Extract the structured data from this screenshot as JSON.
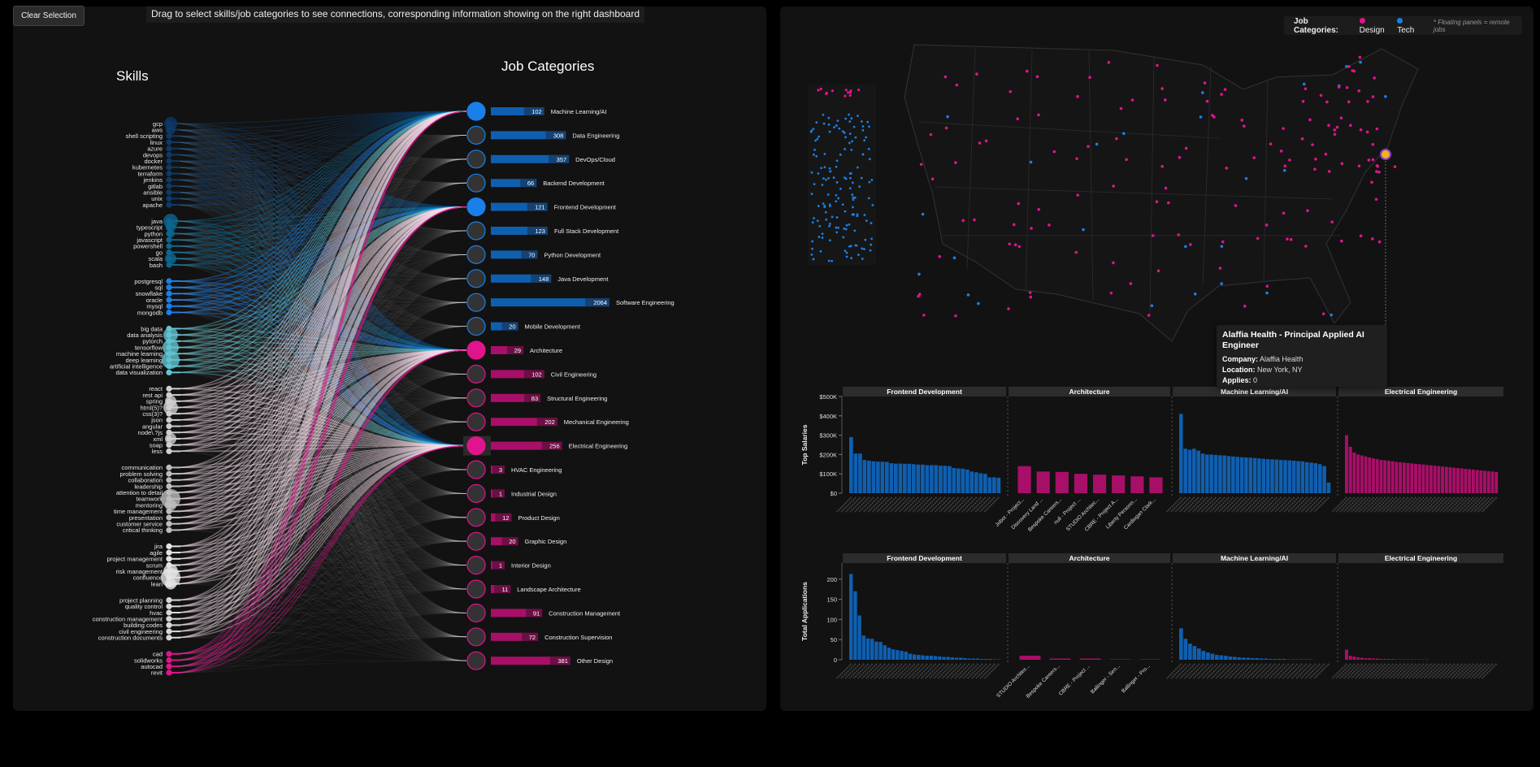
{
  "controls": {
    "clear_label": "Clear Selection",
    "hint": "Drag to select skills/job categories to see connections, corresponding information showing on the right dashboard"
  },
  "colors": {
    "tech": "#0f5fb0",
    "design": "#a80f68",
    "tech_node": "#1a7fe8",
    "design_node": "#e0148c",
    "highlight": "#f2b21c"
  },
  "sankey": {
    "skills_title": "Skills",
    "jobs_title": "Job Categories",
    "skill_groups": [
      {
        "color": "#0d3a66",
        "skills": [
          "gcp",
          "aws",
          "shell scripting",
          "linux",
          "azure",
          "devops",
          "docker",
          "kubernetes",
          "terraform",
          "jenkins",
          "gitlab",
          "ansible",
          "unix",
          "apache"
        ]
      },
      {
        "color": "#0e6790",
        "skills": [
          "java",
          "typescript",
          "python",
          "javascript",
          "powershell",
          "go",
          "scala",
          "bash"
        ]
      },
      {
        "color": "#1a7fe8",
        "skills": [
          "postgresql",
          "sql",
          "snowflake",
          "oracle",
          "mysql",
          "mongodb"
        ]
      },
      {
        "color": "#62c3cf",
        "skills": [
          "big data",
          "data analysis",
          "pytorch",
          "tensorflow",
          "machine learning",
          "deep learning",
          "artificial intelligence",
          "data visualization"
        ]
      },
      {
        "color": "#cfcfcf",
        "skills": [
          "react",
          "rest api",
          "spring",
          "html(5)?",
          "css(3)?",
          "json",
          "angular",
          "node\\.?js",
          "xml",
          "soap",
          "less"
        ]
      },
      {
        "color": "#bdbdbd",
        "skills": [
          "communication",
          "problem solving",
          "collaboration",
          "leadership",
          "attention to detail",
          "teamwork",
          "mentoring",
          "time management",
          "presentation",
          "customer service",
          "critical thinking"
        ]
      },
      {
        "color": "#e4e4e4",
        "skills": [
          "jira",
          "agile",
          "project management",
          "scrum",
          "risk management",
          "confluence",
          "lean"
        ]
      },
      {
        "color": "#d8d8d8",
        "skills": [
          "project planning",
          "quality control",
          "hvac",
          "construction management",
          "building codes",
          "civil engineering",
          "construction documents"
        ]
      },
      {
        "color": "#e0148c",
        "skills": [
          "cad",
          "solidworks",
          "autocad",
          "revit"
        ]
      }
    ],
    "jobs": [
      {
        "name": "Machine Learning/AI",
        "count": 102,
        "type": "tech",
        "selected": true
      },
      {
        "name": "Data Engineering",
        "count": 308,
        "type": "tech",
        "selected": false
      },
      {
        "name": "DevOps/Cloud",
        "count": 357,
        "type": "tech",
        "selected": false
      },
      {
        "name": "Backend Development",
        "count": 66,
        "type": "tech",
        "selected": false
      },
      {
        "name": "Frontend Development",
        "count": 121,
        "type": "tech",
        "selected": true
      },
      {
        "name": "Full Stack Development",
        "count": 123,
        "type": "tech",
        "selected": false
      },
      {
        "name": "Python Development",
        "count": 70,
        "type": "tech",
        "selected": false
      },
      {
        "name": "Java Development",
        "count": 148,
        "type": "tech",
        "selected": false
      },
      {
        "name": "Software Engineering",
        "count": 2064,
        "type": "tech",
        "selected": false
      },
      {
        "name": "Mobile Development",
        "count": 20,
        "type": "tech",
        "selected": false
      },
      {
        "name": "Architecture",
        "count": 29,
        "type": "design",
        "selected": true
      },
      {
        "name": "Civil Engineering",
        "count": 102,
        "type": "design",
        "selected": false
      },
      {
        "name": "Structural Engineering",
        "count": 83,
        "type": "design",
        "selected": false
      },
      {
        "name": "Mechanical Engineering",
        "count": 202,
        "type": "design",
        "selected": false
      },
      {
        "name": "Electrical Engineering",
        "count": 256,
        "type": "design",
        "selected": true
      },
      {
        "name": "HVAC Engineering",
        "count": 3,
        "type": "design",
        "selected": false
      },
      {
        "name": "Industrial Design",
        "count": 1,
        "type": "design",
        "selected": false
      },
      {
        "name": "Product Design",
        "count": 12,
        "type": "design",
        "selected": false
      },
      {
        "name": "Graphic Design",
        "count": 20,
        "type": "design",
        "selected": false
      },
      {
        "name": "Interior Design",
        "count": 1,
        "type": "design",
        "selected": false
      },
      {
        "name": "Landscape Architecture",
        "count": 11,
        "type": "design",
        "selected": false
      },
      {
        "name": "Construction Management",
        "count": 91,
        "type": "design",
        "selected": false
      },
      {
        "name": "Construction Supervision",
        "count": 72,
        "type": "design",
        "selected": false
      },
      {
        "name": "Other Design",
        "count": 381,
        "type": "design",
        "selected": false
      }
    ]
  },
  "map": {
    "legend": {
      "title": "Job Categories:",
      "design": "Design",
      "tech": "Tech",
      "note": "* Floating panels = remote jobs"
    },
    "tooltip": {
      "title": "Alaffia Health - Principal Applied AI Engineer",
      "company_label": "Company:",
      "company": "Alaffia Health",
      "location_label": "Location:",
      "location": "New York, NY",
      "applies_label": "Applies:",
      "applies": "0"
    }
  },
  "chart_data": [
    {
      "type": "bar",
      "ylabel": "Top Salaries",
      "ylim": [
        0,
        500000
      ],
      "yticks": [
        "$0",
        "$100K",
        "$200K",
        "$300K",
        "$400K",
        "$500K"
      ],
      "facets": [
        {
          "title": "Frontend Development",
          "type": "tech",
          "labels": [],
          "values": [
            290000,
            205000,
            205000,
            172000,
            168000,
            165000,
            163000,
            163000,
            162000,
            155000,
            153000,
            153000,
            152000,
            152000,
            150000,
            148000,
            148000,
            145000,
            145000,
            145000,
            142000,
            142000,
            140000,
            130000,
            128000,
            127000,
            122000,
            112000,
            108000,
            103000,
            100000,
            82000,
            82000,
            80000
          ]
        },
        {
          "title": "Architecture",
          "type": "design",
          "labels": [
            "Jobot - Project...",
            "Discovery Land ...",
            "Bespoke Careers...",
            "null - Project ...",
            "STUDIO Architec...",
            "CBRE - Project A...",
            "Liberty Personn...",
            "Cardiogan Clark..."
          ],
          "values": [
            140000,
            112000,
            110000,
            100000,
            96000,
            92000,
            87000,
            82000
          ]
        },
        {
          "title": "Machine Learning/AI",
          "type": "tech",
          "labels": [],
          "values": [
            410000,
            230000,
            225000,
            230000,
            220000,
            205000,
            200000,
            200000,
            198000,
            196000,
            195000,
            192000,
            190000,
            188000,
            186000,
            185000,
            184000,
            182000,
            180000,
            178000,
            176000,
            175000,
            174000,
            172000,
            171000,
            170000,
            168000,
            166000,
            165000,
            160000,
            158000,
            155000,
            150000,
            140000,
            55000
          ]
        },
        {
          "title": "Electrical Engineering",
          "type": "design",
          "labels": [],
          "values": [
            300000,
            240000,
            210000,
            200000,
            195000,
            190000,
            185000,
            180000,
            176000,
            172000,
            170000,
            168000,
            165000,
            162000,
            160000,
            158000,
            156000,
            154000,
            152000,
            150000,
            148000,
            146000,
            144000,
            142000,
            140000,
            138000,
            136000,
            134000,
            132000,
            130000,
            128000,
            126000,
            124000,
            122000,
            120000,
            118000,
            116000,
            114000,
            112000,
            110000
          ]
        }
      ]
    },
    {
      "type": "bar",
      "ylabel": "Total Applications",
      "ylim": [
        0,
        240
      ],
      "yticks": [
        "0",
        "50",
        "100",
        "150",
        "200"
      ],
      "facets": [
        {
          "title": "Frontend Development",
          "type": "tech",
          "labels": [],
          "values": [
            213,
            170,
            110,
            60,
            53,
            52,
            45,
            44,
            36,
            30,
            26,
            24,
            22,
            20,
            15,
            13,
            12,
            11,
            10,
            10,
            9,
            8,
            7,
            7,
            6,
            5,
            5,
            4,
            3,
            3,
            3,
            2,
            2,
            2,
            1,
            1
          ]
        },
        {
          "title": "Architecture",
          "type": "design",
          "labels": [
            "STUDIO Architec...",
            "Bespoke Careers...",
            "CBRE - Project ...",
            "Ballinger - Sen...",
            "Ballinger - Pro..."
          ],
          "values": [
            10,
            3,
            3,
            1,
            1
          ]
        },
        {
          "title": "Machine Learning/AI",
          "type": "tech",
          "labels": [],
          "values": [
            78,
            52,
            40,
            34,
            28,
            22,
            18,
            15,
            12,
            11,
            10,
            8,
            7,
            6,
            5,
            5,
            4,
            4,
            3,
            3,
            2,
            2,
            2,
            2,
            1,
            1,
            1,
            1,
            1,
            1,
            0,
            0,
            0,
            0
          ]
        },
        {
          "title": "Electrical Engineering",
          "type": "design",
          "labels": [],
          "values": [
            25,
            10,
            8,
            6,
            5,
            4,
            4,
            3,
            3,
            2,
            2,
            2,
            2,
            1,
            1,
            1,
            1,
            1,
            1,
            1,
            1,
            1,
            0,
            0,
            0,
            0,
            0,
            0,
            0,
            0,
            0,
            0,
            0,
            0,
            0,
            0,
            0,
            0,
            0,
            0
          ]
        }
      ]
    }
  ]
}
